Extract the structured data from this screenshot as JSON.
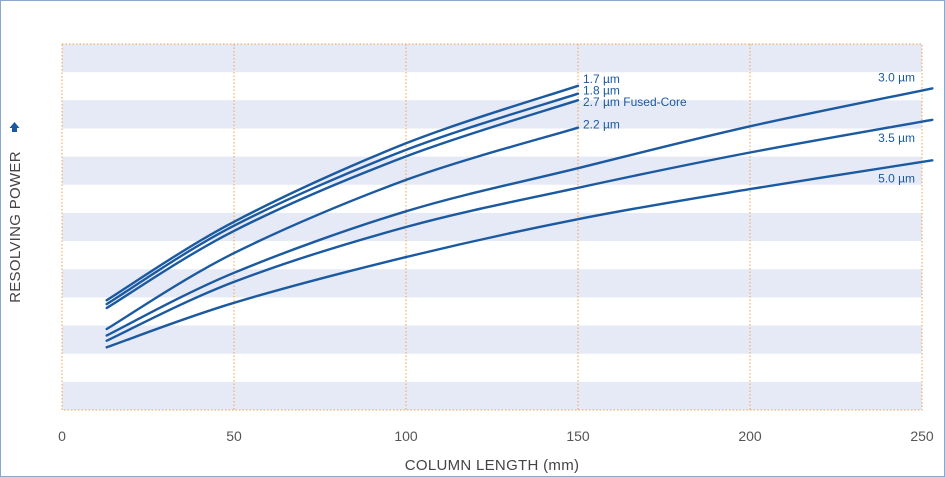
{
  "chart_data": {
    "type": "line",
    "title": "",
    "xlabel": "COLUMN LENGTH (mm)",
    "ylabel": "RESOLVING POWER",
    "xlim": [
      0,
      250
    ],
    "x_ticks": [
      0,
      50,
      100,
      150,
      200,
      250
    ],
    "y_ticks_labeled": false,
    "grid": "vertical dotted at x ticks, horizontal alternating bands",
    "colors": {
      "series": "#1b5aa0",
      "band": "#e6e9f6",
      "grid": "#f0a24a",
      "arrow": "#1b5aa0"
    },
    "series": [
      {
        "name": "1.7 µm",
        "x": [
          13,
          50,
          100,
          150
        ],
        "y": [
          0.42,
          0.72,
          1.02,
          1.24
        ]
      },
      {
        "name": "1.8 µm",
        "x": [
          13,
          50,
          100,
          150
        ],
        "y": [
          0.405,
          0.705,
          0.995,
          1.21
        ]
      },
      {
        "name": "2.7 µm Fused-Core",
        "x": [
          13,
          50,
          100,
          150
        ],
        "y": [
          0.39,
          0.685,
          0.97,
          1.185
        ]
      },
      {
        "name": "2.2 µm",
        "x": [
          13,
          50,
          100,
          150
        ],
        "y": [
          0.31,
          0.6,
          0.88,
          1.08
        ]
      },
      {
        "name": "3.0 µm",
        "x": [
          13,
          50,
          100,
          150,
          200,
          253
        ],
        "y": [
          0.285,
          0.525,
          0.76,
          0.925,
          1.085,
          1.23
        ]
      },
      {
        "name": "3.5 µm",
        "x": [
          13,
          50,
          100,
          150,
          200,
          253
        ],
        "y": [
          0.265,
          0.49,
          0.7,
          0.85,
          0.985,
          1.11
        ]
      },
      {
        "name": "5.0 µm",
        "x": [
          13,
          50,
          100,
          150,
          200,
          253
        ],
        "y": [
          0.24,
          0.41,
          0.585,
          0.73,
          0.845,
          0.955
        ]
      }
    ]
  }
}
